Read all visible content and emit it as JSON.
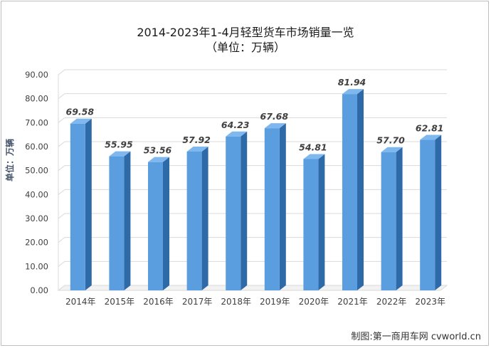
{
  "chart_data": {
    "type": "bar",
    "title": "2014-2023年1-4月轻型货车市场销量一览",
    "subtitle": "（单位：万辆）",
    "ylabel": "单位：万辆",
    "xlabel": "",
    "categories": [
      "2014年",
      "2015年",
      "2016年",
      "2017年",
      "2018年",
      "2019年",
      "2020年",
      "2021年",
      "2022年",
      "2023年"
    ],
    "values": [
      69.58,
      55.95,
      53.56,
      57.92,
      64.23,
      67.68,
      54.81,
      81.94,
      57.7,
      62.81
    ],
    "value_labels": [
      "69.58",
      "55.95",
      "53.56",
      "57.92",
      "64.23",
      "67.68",
      "54.81",
      "81.94",
      "57.70",
      "62.81"
    ],
    "yticks": [
      "0.00",
      "10.00",
      "20.00",
      "30.00",
      "40.00",
      "50.00",
      "60.00",
      "70.00",
      "80.00",
      "90.00"
    ],
    "ylim": [
      0,
      90
    ],
    "grid": true,
    "bar_color_front": "#5a9ee0",
    "bar_color_side": "#2f6aa8",
    "bar_color_top": "#7fb8ee"
  },
  "credit": "制图:第一商用车网 cvworld.cn"
}
